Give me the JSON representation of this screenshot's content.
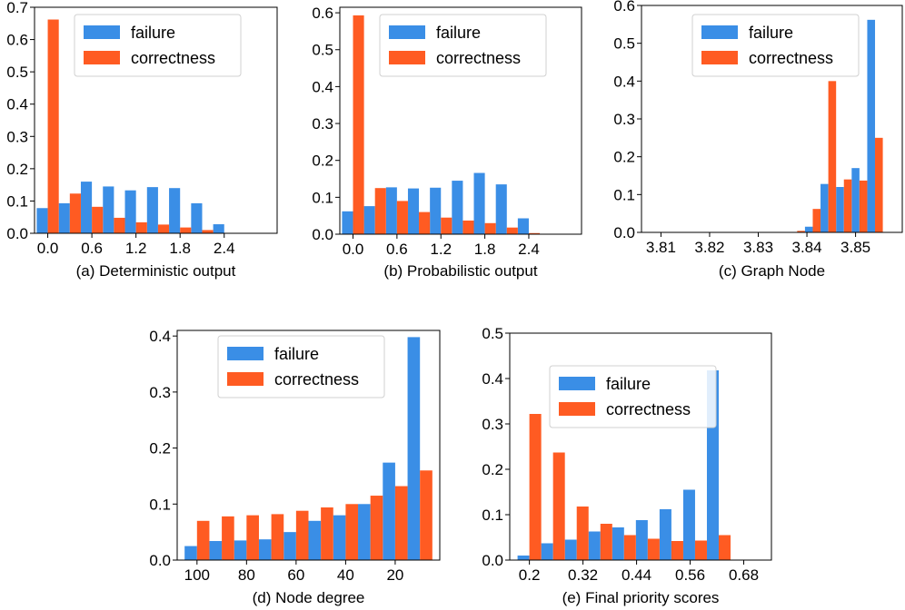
{
  "colors": {
    "failure": "#3a8ee6",
    "correctness": "#ff5b22",
    "axis": "#000000",
    "background": "#ffffff"
  },
  "chart_data": [
    {
      "type": "bar",
      "id": "a",
      "caption": "(a) Deterministic output",
      "x_ticks": [
        "0.0",
        "0.6",
        "1.2",
        "1.8",
        "2.4"
      ],
      "x_tick_values": [
        0.0,
        0.6,
        1.2,
        1.8,
        2.4
      ],
      "xlim": [
        -0.18,
        3.12
      ],
      "bin_width": 0.3,
      "bin_centers": [
        0.0,
        0.3,
        0.6,
        0.9,
        1.2,
        1.5,
        1.8,
        2.1,
        2.4
      ],
      "y_ticks": [
        "0.0",
        "0.1",
        "0.2",
        "0.3",
        "0.4",
        "0.5",
        "0.6",
        "0.7"
      ],
      "y_tick_values": [
        0.0,
        0.1,
        0.2,
        0.3,
        0.4,
        0.5,
        0.6,
        0.7
      ],
      "ylim": [
        0,
        0.7
      ],
      "legend": {
        "placement": "top-center",
        "labels": [
          "failure",
          "correctness"
        ]
      },
      "series": [
        {
          "name": "failure",
          "values": [
            0.078,
            0.093,
            0.16,
            0.145,
            0.133,
            0.143,
            0.14,
            0.093,
            0.028
          ]
        },
        {
          "name": "correctness",
          "values": [
            0.662,
            0.123,
            0.082,
            0.048,
            0.034,
            0.027,
            0.018,
            0.01,
            0.0
          ]
        }
      ]
    },
    {
      "type": "bar",
      "id": "b",
      "caption": "(b) Probabilistic output",
      "x_ticks": [
        "0.0",
        "0.6",
        "1.2",
        "1.8",
        "2.4"
      ],
      "x_tick_values": [
        0.0,
        0.6,
        1.2,
        1.8,
        2.4
      ],
      "xlim": [
        -0.18,
        3.12
      ],
      "bin_width": 0.3,
      "bin_centers": [
        0.0,
        0.3,
        0.6,
        0.9,
        1.2,
        1.5,
        1.8,
        2.1,
        2.4
      ],
      "y_ticks": [
        "0.0",
        "0.1",
        "0.2",
        "0.3",
        "0.4",
        "0.5",
        "0.6"
      ],
      "y_tick_values": [
        0.0,
        0.1,
        0.2,
        0.3,
        0.4,
        0.5,
        0.6
      ],
      "ylim": [
        0,
        0.615
      ],
      "legend": {
        "placement": "top-center",
        "labels": [
          "failure",
          "correctness"
        ]
      },
      "series": [
        {
          "name": "failure",
          "values": [
            0.062,
            0.076,
            0.127,
            0.124,
            0.126,
            0.145,
            0.166,
            0.135,
            0.043
          ]
        },
        {
          "name": "correctness",
          "values": [
            0.593,
            0.125,
            0.09,
            0.06,
            0.045,
            0.037,
            0.03,
            0.018,
            0.003
          ]
        }
      ]
    },
    {
      "type": "bar",
      "id": "c",
      "caption": "(c) Graph Node",
      "x_ticks": [
        "3.81",
        "3.82",
        "3.83",
        "3.84",
        "3.85"
      ],
      "x_tick_values": [
        3.81,
        3.82,
        3.83,
        3.84,
        3.85
      ],
      "xlim": [
        3.806,
        3.8596
      ],
      "bin_width": 0.0032,
      "bin_centers": [
        3.8092,
        3.8124,
        3.8156,
        3.8188,
        3.822,
        3.8252,
        3.8284,
        3.8316,
        3.8348,
        3.838,
        3.8412,
        3.8444,
        3.8476,
        3.8508,
        3.854,
        3.8572
      ],
      "y_ticks": [
        "0.0",
        "0.1",
        "0.2",
        "0.3",
        "0.4",
        "0.5",
        "0.6"
      ],
      "y_tick_values": [
        0.0,
        0.1,
        0.2,
        0.3,
        0.4,
        0.5,
        0.6
      ],
      "ylim": [
        0,
        0.6
      ],
      "legend": {
        "placement": "top-center",
        "labels": [
          "failure",
          "correctness"
        ]
      },
      "series": [
        {
          "name": "failure",
          "values": [
            0.0,
            0.0,
            0.0,
            0.0,
            0.0,
            0.0,
            0.0,
            0.0,
            0.0,
            0.001,
            0.015,
            0.128,
            0.12,
            0.17,
            0.562,
            0.0
          ]
        },
        {
          "name": "correctness",
          "values": [
            0.0,
            0.0,
            0.0,
            0.0,
            0.0,
            0.0,
            0.0,
            0.0,
            0.001,
            0.004,
            0.062,
            0.4,
            0.14,
            0.137,
            0.25,
            0.0
          ]
        }
      ]
    },
    {
      "type": "bar",
      "id": "d",
      "caption": "(d) Node degree",
      "x_ticks": [
        "100",
        "80",
        "60",
        "40",
        "20"
      ],
      "x_tick_values": [
        100,
        80,
        60,
        40,
        20
      ],
      "xlim": [
        108,
        2
      ],
      "bin_width": 10,
      "bin_centers": [
        100,
        90,
        80,
        70,
        60,
        50,
        40,
        30,
        20,
        10
      ],
      "y_ticks": [
        "0.0",
        "0.1",
        "0.2",
        "0.3",
        "0.4"
      ],
      "y_tick_values": [
        0.0,
        0.1,
        0.2,
        0.3,
        0.4
      ],
      "ylim": [
        0,
        0.41
      ],
      "legend": {
        "placement": "top-center",
        "labels": [
          "failure",
          "correctness"
        ]
      },
      "series": [
        {
          "name": "failure",
          "values": [
            0.025,
            0.034,
            0.035,
            0.037,
            0.05,
            0.07,
            0.08,
            0.1,
            0.174,
            0.398
          ]
        },
        {
          "name": "correctness",
          "values": [
            0.07,
            0.078,
            0.08,
            0.082,
            0.088,
            0.094,
            0.1,
            0.115,
            0.132,
            0.16
          ]
        }
      ]
    },
    {
      "type": "bar",
      "id": "e",
      "caption": "(e) Final priority scores",
      "x_ticks": [
        "0.2",
        "0.32",
        "0.44",
        "0.56",
        "0.68"
      ],
      "x_tick_values": [
        0.2,
        0.32,
        0.44,
        0.56,
        0.68
      ],
      "xlim": [
        0.156,
        0.742
      ],
      "bin_width": 0.053,
      "bin_centers": [
        0.2,
        0.253,
        0.306,
        0.359,
        0.412,
        0.465,
        0.518,
        0.571,
        0.624,
        0.677
      ],
      "y_ticks": [
        "0.0",
        "0.1",
        "0.2",
        "0.3",
        "0.4",
        "0.5"
      ],
      "y_tick_values": [
        0.0,
        0.1,
        0.2,
        0.3,
        0.4,
        0.5
      ],
      "ylim": [
        0,
        0.5
      ],
      "legend": {
        "placement": "top-center",
        "labels": [
          "failure",
          "correctness"
        ]
      },
      "series": [
        {
          "name": "failure",
          "values": [
            0.01,
            0.037,
            0.045,
            0.063,
            0.072,
            0.088,
            0.112,
            0.155,
            0.418,
            0.0
          ]
        },
        {
          "name": "correctness",
          "values": [
            0.322,
            0.237,
            0.118,
            0.08,
            0.055,
            0.047,
            0.042,
            0.043,
            0.055,
            0.0
          ]
        }
      ]
    }
  ]
}
